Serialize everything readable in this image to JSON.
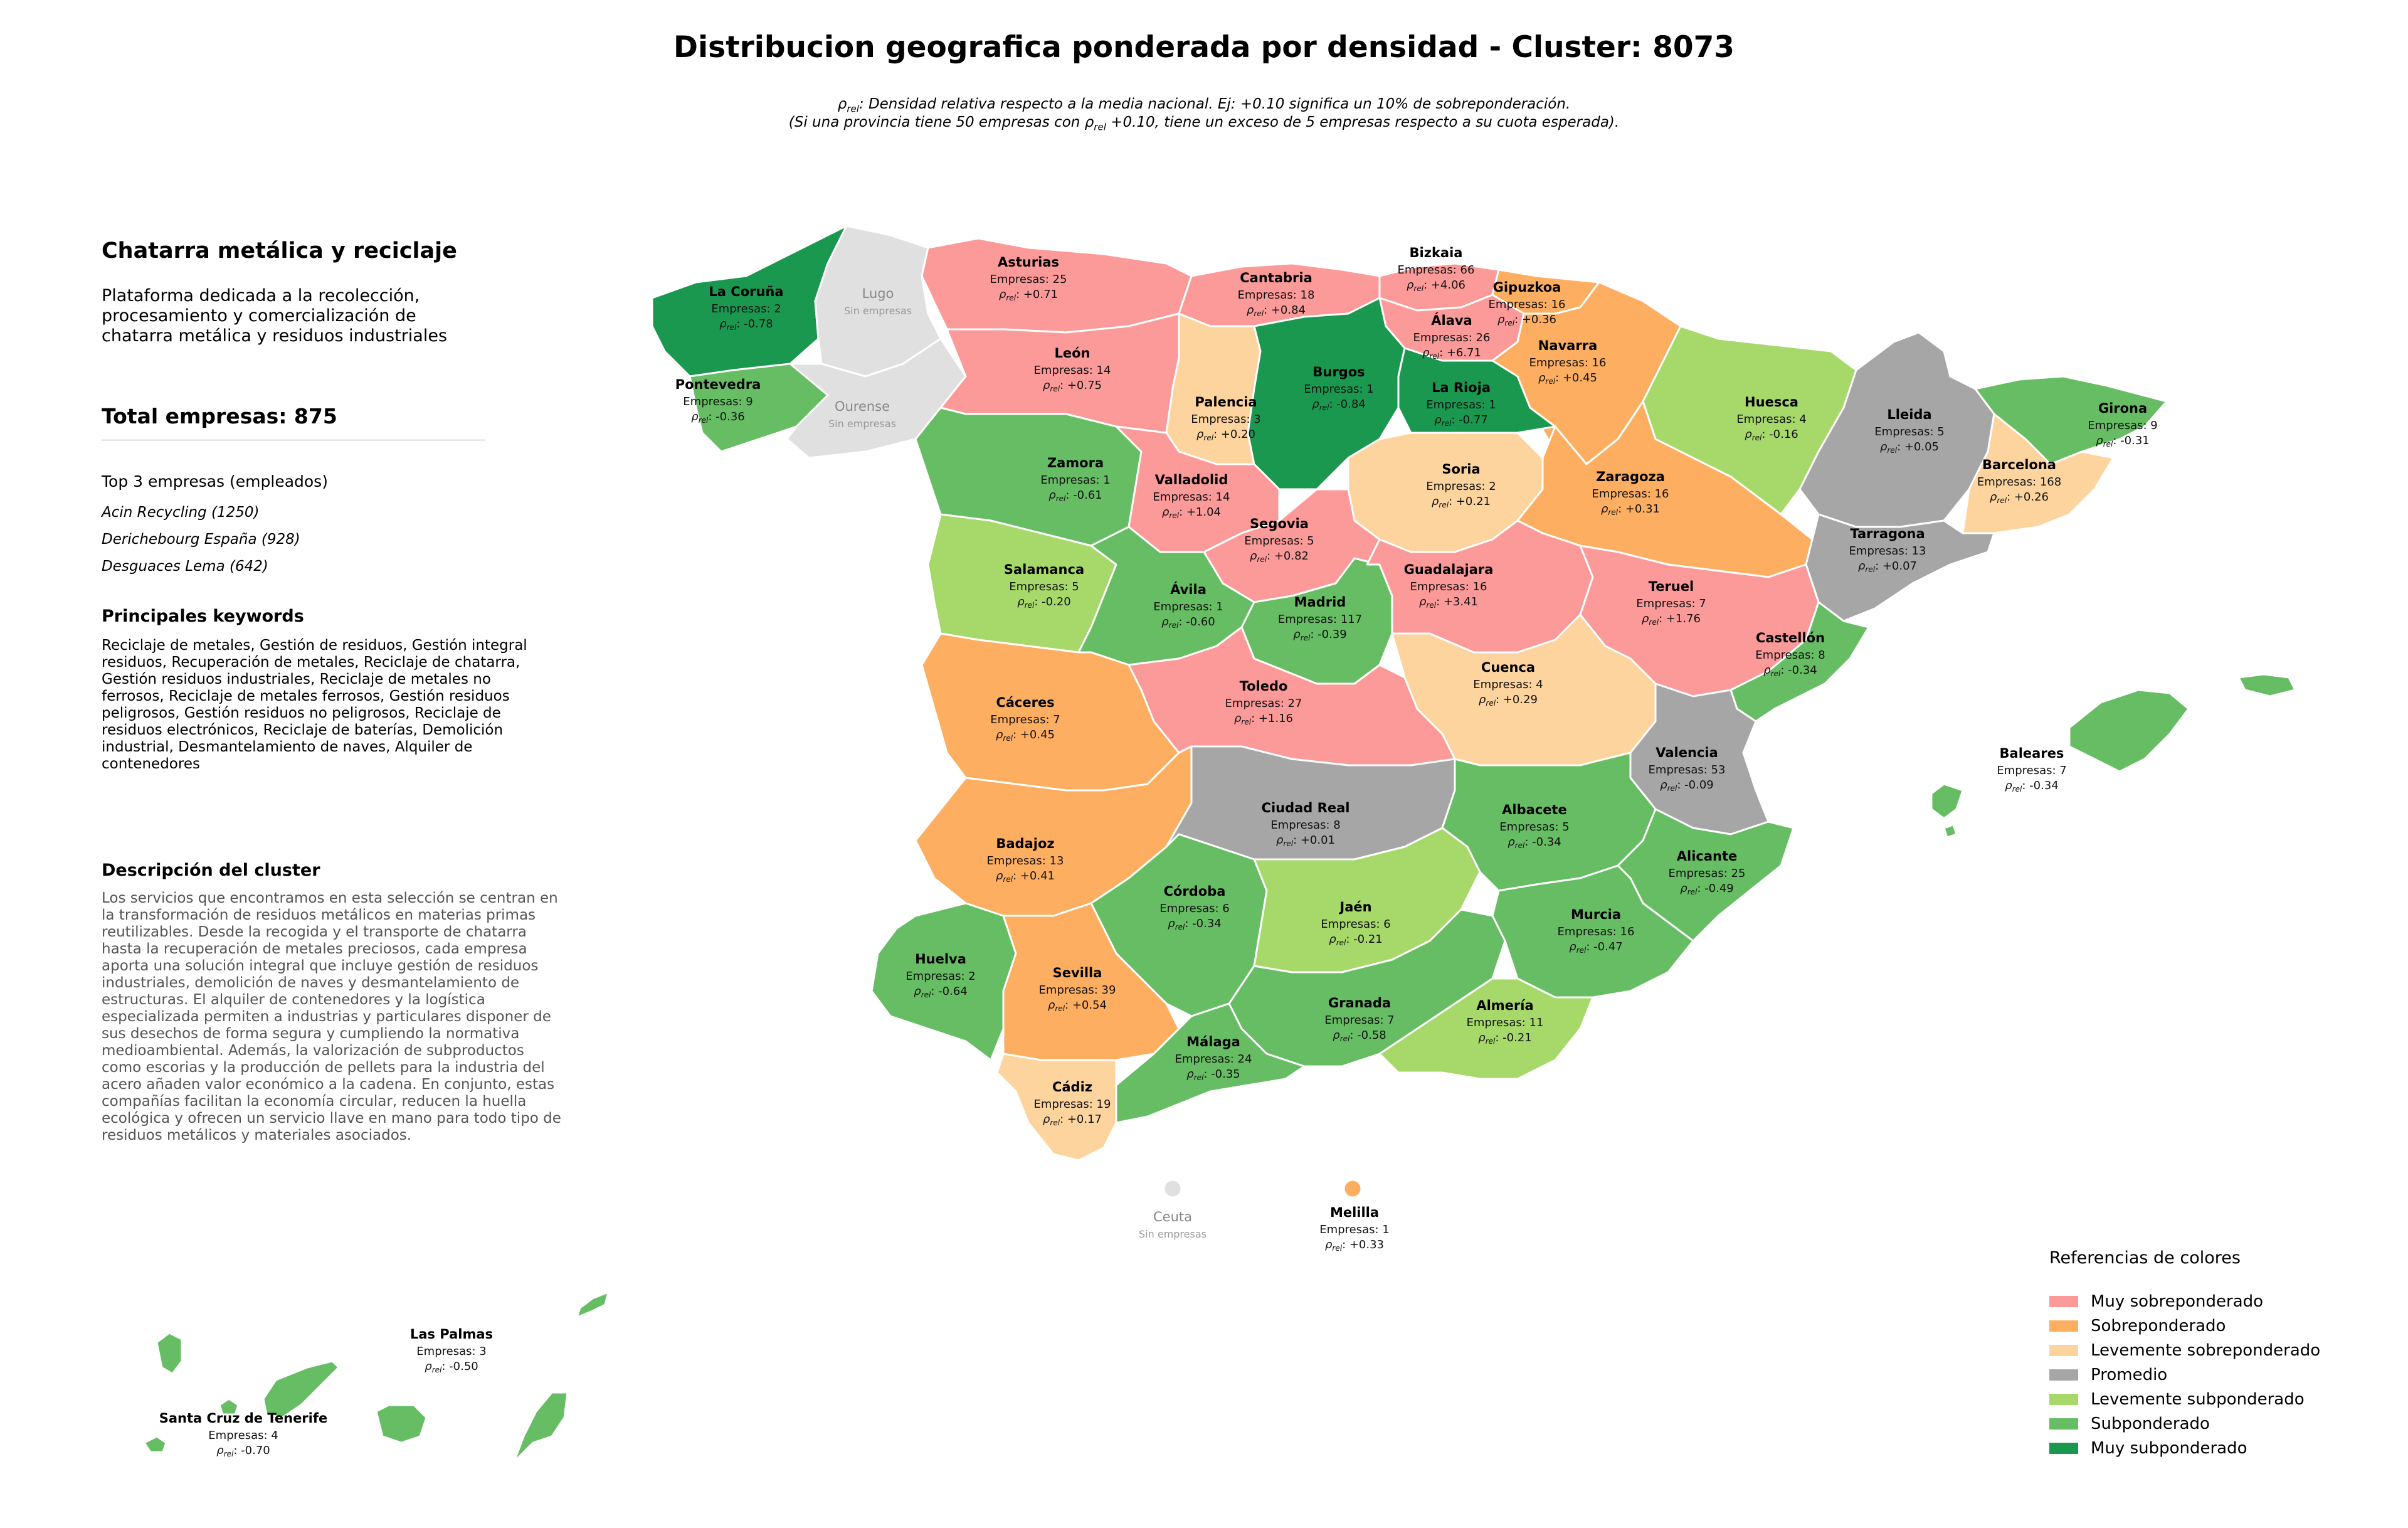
{
  "title": "Distribucion geografica ponderada por densidad - Cluster: 8073",
  "subtitle_line1_rest": ": Densidad relativa respecto a la media nacional. Ej: +0.10 significa un 10% de sobreponderación.",
  "subtitle_line2_pre": "(Si una provincia tiene 50 empresas con ",
  "subtitle_line2_post": " +0.10, tiene un exceso de 5 empresas respecto a su cuota esperada).",
  "rho_symbol": "ρ",
  "rho_sub": "rel",
  "sidebar": {
    "cluster_name": "Chatarra metálica y reciclaje",
    "cluster_summary": "Plataforma dedicada a la recolección, procesamiento y comercialización de chatarra metálica y residuos industriales",
    "total": "Total empresas: 875",
    "top3_heading": "Top 3 empresas (empleados)",
    "top3": [
      "Acin Recycling (1250)",
      "Derichebourg España (928)",
      "Desguaces Lema (642)"
    ],
    "keywords_heading": "Principales keywords",
    "keywords": "Reciclaje de metales, Gestión de residuos, Gestión integral residuos, Recuperación de metales, Reciclaje de chatarra, Gestión residuos industriales, Reciclaje de metales no ferrosos, Reciclaje de metales ferrosos, Gestión residuos peligrosos, Gestión residuos no peligrosos, Reciclaje de residuos electrónicos, Reciclaje de baterías, Demolición industrial, Desmantelamiento de naves, Alquiler de contenedores",
    "description_heading": "Descripción del cluster",
    "description": "Los servicios que encontramos en esta selección se centran en la transformación de residuos metálicos en materias primas reutilizables. Desde la recogida y el transporte de chatarra hasta la recuperación de metales preciosos, cada empresa aporta una solución integral que incluye gestión de residuos industriales, demolición de naves y desmantelamiento de estructuras. El alquiler de contenedores y la logística especializada permiten a industrias y particulares disponer de sus desechos de forma segura y cumpliendo la normativa medioambiental. Además, la valorización de subproductos como escorias y la producción de pellets para la industria del acero añaden valor económico a la cadena. En conjunto, estas compañías facilitan la economía circular, reducen la huella ecológica y ofrecen un servicio llave en mano para todo tipo de residuos metálicos y materiales asociados."
  },
  "colors": {
    "muy_sobre": "#fb9a99",
    "sobre": "#fdae61",
    "lev_sobre": "#fdd49e",
    "promedio": "#a6a6a6",
    "lev_sub": "#a6d96a",
    "sub": "#66bd63",
    "muy_sub": "#1a9850",
    "sin": "#e0e0e0"
  },
  "empresas_prefix": "Empresas: ",
  "sin_empresas_label": "Sin empresas",
  "provinces": [
    {
      "name": "La Coruña",
      "empresas": 2,
      "rho": "-0.78",
      "category": "muy_sub"
    },
    {
      "name": "Lugo",
      "empresas": null,
      "rho": null,
      "category": "sin"
    },
    {
      "name": "Pontevedra",
      "empresas": 9,
      "rho": "-0.36",
      "category": "sub"
    },
    {
      "name": "Ourense",
      "empresas": null,
      "rho": null,
      "category": "sin"
    },
    {
      "name": "Asturias",
      "empresas": 25,
      "rho": "+0.71",
      "category": "muy_sobre"
    },
    {
      "name": "Cantabria",
      "empresas": 18,
      "rho": "+0.84",
      "category": "muy_sobre"
    },
    {
      "name": "Bizkaia",
      "empresas": 66,
      "rho": "+4.06",
      "category": "muy_sobre"
    },
    {
      "name": "Gipuzkoa",
      "empresas": 16,
      "rho": "+0.36",
      "category": "sobre"
    },
    {
      "name": "Álava",
      "empresas": 26,
      "rho": "+6.71",
      "category": "muy_sobre"
    },
    {
      "name": "Navarra",
      "empresas": 16,
      "rho": "+0.45",
      "category": "sobre"
    },
    {
      "name": "León",
      "empresas": 14,
      "rho": "+0.75",
      "category": "muy_sobre"
    },
    {
      "name": "Palencia",
      "empresas": 3,
      "rho": "+0.20",
      "category": "lev_sobre"
    },
    {
      "name": "Burgos",
      "empresas": 1,
      "rho": "-0.84",
      "category": "muy_sub"
    },
    {
      "name": "La Rioja",
      "empresas": 1,
      "rho": "-0.77",
      "category": "muy_sub"
    },
    {
      "name": "Huesca",
      "empresas": 4,
      "rho": "-0.16",
      "category": "lev_sub"
    },
    {
      "name": "Lleida",
      "empresas": 5,
      "rho": "+0.05",
      "category": "promedio"
    },
    {
      "name": "Girona",
      "empresas": 9,
      "rho": "-0.31",
      "category": "sub"
    },
    {
      "name": "Barcelona",
      "empresas": 168,
      "rho": "+0.26",
      "category": "lev_sobre"
    },
    {
      "name": "Zamora",
      "empresas": 1,
      "rho": "-0.61",
      "category": "sub"
    },
    {
      "name": "Valladolid",
      "empresas": 14,
      "rho": "+1.04",
      "category": "muy_sobre"
    },
    {
      "name": "Soria",
      "empresas": 2,
      "rho": "+0.21",
      "category": "lev_sobre"
    },
    {
      "name": "Zaragoza",
      "empresas": 16,
      "rho": "+0.31",
      "category": "sobre"
    },
    {
      "name": "Tarragona",
      "empresas": 13,
      "rho": "+0.07",
      "category": "promedio"
    },
    {
      "name": "Segovia",
      "empresas": 5,
      "rho": "+0.82",
      "category": "muy_sobre"
    },
    {
      "name": "Salamanca",
      "empresas": 5,
      "rho": "-0.20",
      "category": "lev_sub"
    },
    {
      "name": "Ávila",
      "empresas": 1,
      "rho": "-0.60",
      "category": "sub"
    },
    {
      "name": "Madrid",
      "empresas": 117,
      "rho": "-0.39",
      "category": "sub"
    },
    {
      "name": "Guadalajara",
      "empresas": 16,
      "rho": "+3.41",
      "category": "muy_sobre"
    },
    {
      "name": "Teruel",
      "empresas": 7,
      "rho": "+1.76",
      "category": "muy_sobre"
    },
    {
      "name": "Castellón",
      "empresas": 8,
      "rho": "-0.34",
      "category": "sub"
    },
    {
      "name": "Cáceres",
      "empresas": 7,
      "rho": "+0.45",
      "category": "sobre"
    },
    {
      "name": "Toledo",
      "empresas": 27,
      "rho": "+1.16",
      "category": "muy_sobre"
    },
    {
      "name": "Cuenca",
      "empresas": 4,
      "rho": "+0.29",
      "category": "lev_sobre"
    },
    {
      "name": "Valencia",
      "empresas": 53,
      "rho": "-0.09",
      "category": "promedio"
    },
    {
      "name": "Baleares",
      "empresas": 7,
      "rho": "-0.34",
      "category": "sub"
    },
    {
      "name": "Badajoz",
      "empresas": 13,
      "rho": "+0.41",
      "category": "sobre"
    },
    {
      "name": "Ciudad Real",
      "empresas": 8,
      "rho": "+0.01",
      "category": "promedio"
    },
    {
      "name": "Albacete",
      "empresas": 5,
      "rho": "-0.34",
      "category": "sub"
    },
    {
      "name": "Alicante",
      "empresas": 25,
      "rho": "-0.49",
      "category": "sub"
    },
    {
      "name": "Córdoba",
      "empresas": 6,
      "rho": "-0.34",
      "category": "sub"
    },
    {
      "name": "Jaén",
      "empresas": 6,
      "rho": "-0.21",
      "category": "lev_sub"
    },
    {
      "name": "Murcia",
      "empresas": 16,
      "rho": "-0.47",
      "category": "sub"
    },
    {
      "name": "Huelva",
      "empresas": 2,
      "rho": "-0.64",
      "category": "sub"
    },
    {
      "name": "Sevilla",
      "empresas": 39,
      "rho": "+0.54",
      "category": "sobre"
    },
    {
      "name": "Granada",
      "empresas": 7,
      "rho": "-0.58",
      "category": "sub"
    },
    {
      "name": "Almería",
      "empresas": 11,
      "rho": "-0.21",
      "category": "lev_sub"
    },
    {
      "name": "Málaga",
      "empresas": 24,
      "rho": "-0.35",
      "category": "sub"
    },
    {
      "name": "Cádiz",
      "empresas": 19,
      "rho": "+0.17",
      "category": "lev_sobre"
    },
    {
      "name": "Ceuta",
      "empresas": null,
      "rho": null,
      "category": "sin"
    },
    {
      "name": "Melilla",
      "empresas": 1,
      "rho": "+0.33",
      "category": "sobre"
    },
    {
      "name": "Las Palmas",
      "empresas": 3,
      "rho": "-0.50",
      "category": "sub"
    },
    {
      "name": "Santa Cruz de Tenerife",
      "empresas": 4,
      "rho": "-0.70",
      "category": "sub"
    }
  ],
  "legend": {
    "title": "Referencias de colores",
    "items": [
      {
        "label": "Muy sobreponderado",
        "category": "muy_sobre"
      },
      {
        "label": "Sobreponderado",
        "category": "sobre"
      },
      {
        "label": "Levemente sobreponderado",
        "category": "lev_sobre"
      },
      {
        "label": "Promedio",
        "category": "promedio"
      },
      {
        "label": "Levemente subponderado",
        "category": "lev_sub"
      },
      {
        "label": "Subponderado",
        "category": "sub"
      },
      {
        "label": "Muy subponderado",
        "category": "muy_sub"
      }
    ]
  }
}
